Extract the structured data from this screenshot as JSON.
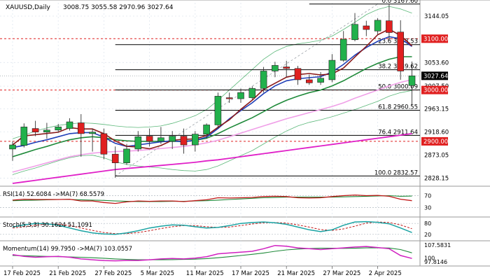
{
  "header": {
    "symbol": "XAUUSD,Daily",
    "ohlc": "3008.75 3055.58 2970.96 3027.64"
  },
  "chart_data": {
    "type": "candlestick",
    "title": "XAUUSD,Daily",
    "ylim": [
      2818,
      3170
    ],
    "price_ticks": [
      {
        "v": 3144.05,
        "t": "3144.05"
      },
      {
        "v": 3053.6,
        "t": "3053.60"
      },
      {
        "v": 3007.5,
        "t": "3007.50"
      },
      {
        "v": 2963.15,
        "t": "2963.15"
      },
      {
        "v": 2918.6,
        "t": "2918.60"
      },
      {
        "v": 2873.05,
        "t": "2873.05"
      },
      {
        "v": 2828.15,
        "t": "2828.15"
      }
    ],
    "highlight_labels": [
      {
        "v": 3100.0,
        "t": "3100.00",
        "color": "#e02020"
      },
      {
        "v": 3027.64,
        "t": "3027.64",
        "color": "#000000"
      },
      {
        "v": 3000.0,
        "t": "3000.00",
        "color": "#e02020"
      },
      {
        "v": 2900.0,
        "t": "2900.00",
        "color": "#e02020"
      }
    ],
    "fib_levels": [
      {
        "level": "0.0",
        "value": 3167.6,
        "label": "0.0 3167.60"
      },
      {
        "level": "23.6",
        "value": 3088.53,
        "label": "23.6 3088.53"
      },
      {
        "level": "38.2",
        "value": 3039.62,
        "label": "38.2 3039.62"
      },
      {
        "level": "50.0",
        "value": 3000.09,
        "label": "50.0 3000.09"
      },
      {
        "level": "61.8",
        "value": 2960.55,
        "label": "61.8 2960.55"
      },
      {
        "level": "76.4",
        "value": 2911.64,
        "label": "76.4 2911.64"
      },
      {
        "level": "100.0",
        "value": 2832.57,
        "label": "100.0 2832.57"
      }
    ],
    "candles": [
      {
        "o": 2885,
        "h": 2900,
        "l": 2862,
        "c": 2893
      },
      {
        "o": 2892,
        "h": 2935,
        "l": 2888,
        "c": 2928
      },
      {
        "o": 2925,
        "h": 2940,
        "l": 2910,
        "c": 2918
      },
      {
        "o": 2918,
        "h": 2936,
        "l": 2905,
        "c": 2922
      },
      {
        "o": 2922,
        "h": 2934,
        "l": 2917,
        "c": 2928
      },
      {
        "o": 2925,
        "h": 2945,
        "l": 2921,
        "c": 2938
      },
      {
        "o": 2936,
        "h": 2953,
        "l": 2870,
        "c": 2915
      },
      {
        "o": 2915,
        "h": 2925,
        "l": 2880,
        "c": 2918
      },
      {
        "o": 2915,
        "h": 2925,
        "l": 2865,
        "c": 2875
      },
      {
        "o": 2875,
        "h": 2890,
        "l": 2829,
        "c": 2858
      },
      {
        "o": 2858,
        "h": 2895,
        "l": 2854,
        "c": 2885
      },
      {
        "o": 2885,
        "h": 2920,
        "l": 2880,
        "c": 2909
      },
      {
        "o": 2910,
        "h": 2925,
        "l": 2890,
        "c": 2900
      },
      {
        "o": 2900,
        "h": 2928,
        "l": 2895,
        "c": 2907
      },
      {
        "o": 2900,
        "h": 2920,
        "l": 2885,
        "c": 2910
      },
      {
        "o": 2910,
        "h": 2925,
        "l": 2876,
        "c": 2893
      },
      {
        "o": 2893,
        "h": 2920,
        "l": 2880,
        "c": 2914
      },
      {
        "o": 2914,
        "h": 2935,
        "l": 2905,
        "c": 2932
      },
      {
        "o": 2932,
        "h": 2995,
        "l": 2925,
        "c": 2988
      },
      {
        "o": 2985,
        "h": 2995,
        "l": 2975,
        "c": 2983
      },
      {
        "o": 2983,
        "h": 3003,
        "l": 2975,
        "c": 2995
      },
      {
        "o": 2985,
        "h": 3007,
        "l": 2982,
        "c": 3003
      },
      {
        "o": 3003,
        "h": 3045,
        "l": 2995,
        "c": 3037
      },
      {
        "o": 3037,
        "h": 3055,
        "l": 3025,
        "c": 3048
      },
      {
        "o": 3045,
        "h": 3057,
        "l": 3025,
        "c": 3042
      },
      {
        "o": 3042,
        "h": 3047,
        "l": 3010,
        "c": 3020
      },
      {
        "o": 3020,
        "h": 3030,
        "l": 3010,
        "c": 3014
      },
      {
        "o": 3015,
        "h": 3035,
        "l": 3010,
        "c": 3023
      },
      {
        "o": 3020,
        "h": 3070,
        "l": 3015,
        "c": 3058
      },
      {
        "o": 3058,
        "h": 3115,
        "l": 3055,
        "c": 3099
      },
      {
        "o": 3098,
        "h": 3150,
        "l": 3095,
        "c": 3128
      },
      {
        "o": 3125,
        "h": 3135,
        "l": 3105,
        "c": 3118
      },
      {
        "o": 3115,
        "h": 3140,
        "l": 3108,
        "c": 3136
      },
      {
        "o": 3135,
        "h": 3168,
        "l": 3098,
        "c": 3112
      },
      {
        "o": 3113,
        "h": 3136,
        "l": 3020,
        "c": 3037
      },
      {
        "o": 3008.75,
        "h": 3055.58,
        "l": 2970.96,
        "c": 3027.64
      }
    ],
    "x_labels": [
      {
        "i": 0,
        "t": "17 Feb 2025"
      },
      {
        "i": 4,
        "t": "21 Feb 2025"
      },
      {
        "i": 8,
        "t": "27 Feb 2025"
      },
      {
        "i": 12,
        "t": "5 Mar 2025"
      },
      {
        "i": 16,
        "t": "11 Mar 2025"
      },
      {
        "i": 20,
        "t": "17 Mar 2025"
      },
      {
        "i": 24,
        "t": "21 Mar 2025"
      },
      {
        "i": 28,
        "t": "27 Mar 2025"
      },
      {
        "i": 32,
        "t": "2 Apr 2025"
      }
    ],
    "ma_fast": [
      2888,
      2892,
      2898,
      2903,
      2909,
      2915,
      2917,
      2917,
      2908,
      2896,
      2890,
      2893,
      2896,
      2899,
      2901,
      2899,
      2902,
      2908,
      2925,
      2944,
      2960,
      2975,
      2993,
      3008,
      3018,
      3022,
      3024,
      3026,
      3035,
      3050,
      3068,
      3083,
      3095,
      3104,
      3100,
      3085
    ],
    "ma_mid": [
      2870,
      2877,
      2884,
      2890,
      2897,
      2903,
      2907,
      2909,
      2907,
      2903,
      2901,
      2900,
      2900,
      2900,
      2900,
      2900,
      2902,
      2906,
      2915,
      2926,
      2936,
      2946,
      2958,
      2970,
      2980,
      2988,
      2995,
      3000,
      3008,
      3018,
      3030,
      3042,
      3052,
      3060,
      3065,
      3065
    ],
    "ma_slow": [
      2840,
      2846,
      2852,
      2858,
      2864,
      2870,
      2874,
      2877,
      2879,
      2880,
      2881,
      2882,
      2884,
      2886,
      2888,
      2890,
      2893,
      2897,
      2902,
      2909,
      2916,
      2923,
      2930,
      2937,
      2944,
      2950,
      2956,
      2962,
      2968,
      2975,
      2984,
      2992,
      3000,
      3008,
      3015,
      3020
    ],
    "ma_long": [
      2818,
      2821,
      2824,
      2827,
      2830,
      2833,
      2836,
      2839,
      2842,
      2845,
      2847,
      2849,
      2851,
      2853,
      2855,
      2857,
      2859,
      2862,
      2864,
      2867,
      2870,
      2873,
      2876,
      2879,
      2882,
      2885,
      2888,
      2891,
      2894,
      2897,
      2900,
      2903,
      2906,
      2909,
      2912,
      2915
    ],
    "env_upper": [
      2905,
      2912,
      2920,
      2926,
      2931,
      2934,
      2936,
      2935,
      2933,
      2930,
      2928,
      2927,
      2928,
      2930,
      2935,
      2942,
      2950,
      2962,
      2980,
      3000,
      3020,
      3040,
      3060,
      3075,
      3085,
      3090,
      3093,
      3097,
      3105,
      3118,
      3132,
      3147,
      3157,
      3163,
      3158,
      3150
    ],
    "env_lower": [
      2835,
      2842,
      2848,
      2855,
      2862,
      2868,
      2872,
      2873,
      2868,
      2860,
      2855,
      2852,
      2850,
      2848,
      2845,
      2843,
      2842,
      2845,
      2852,
      2862,
      2872,
      2882,
      2895,
      2908,
      2920,
      2930,
      2937,
      2942,
      2948,
      2955,
      2962,
      2970,
      2978,
      2988,
      2995,
      2999
    ],
    "rsi": {
      "title": "RSI(14) 52.6084 ->MA(7) 68.5579",
      "levels": [
        {
          "v": 70,
          "t": "70"
        },
        {
          "v": 30,
          "t": "30"
        }
      ],
      "rsi": [
        55,
        58,
        57,
        57,
        57,
        58,
        52,
        52,
        47,
        44,
        49,
        52,
        51,
        52,
        52,
        50,
        53,
        56,
        63,
        62,
        63,
        64,
        67,
        68,
        67,
        63,
        62,
        63,
        67,
        70,
        72,
        70,
        71,
        68,
        58,
        53
      ],
      "ma": [
        53,
        54,
        55,
        56,
        57,
        57,
        56,
        55,
        54,
        52,
        51,
        50,
        50,
        50,
        51,
        51,
        52,
        53,
        55,
        57,
        59,
        61,
        63,
        64,
        65,
        65,
        65,
        65,
        65,
        66,
        67,
        68,
        69,
        70,
        68,
        68.6
      ]
    },
    "stoch": {
      "title": "Stoch(5,3,3) 30.1624 51.1091",
      "levels": [
        {
          "v": 80,
          "t": "80"
        },
        {
          "v": 20,
          "t": "20"
        }
      ],
      "k": [
        60,
        72,
        80,
        78,
        70,
        55,
        40,
        28,
        22,
        20,
        28,
        40,
        55,
        65,
        72,
        70,
        62,
        55,
        58,
        68,
        80,
        85,
        88,
        84,
        75,
        60,
        45,
        35,
        45,
        70,
        88,
        90,
        86,
        78,
        55,
        30
      ],
      "d": [
        55,
        62,
        70,
        76,
        76,
        68,
        55,
        42,
        30,
        24,
        24,
        30,
        40,
        52,
        62,
        68,
        68,
        62,
        58,
        60,
        68,
        77,
        84,
        85,
        82,
        72,
        60,
        46,
        42,
        50,
        65,
        82,
        88,
        85,
        72,
        51
      ]
    },
    "momentum": {
      "title": "Momentum(14) 99.7950 ->MA(7) 103.0557",
      "labels": [
        {
          "v": 107.5831,
          "t": "107.5831"
        },
        {
          "v": 100,
          "t": "100"
        },
        {
          "v": 97.8146,
          "t": "97.8146"
        }
      ],
      "mom": [
        102,
        101,
        100.5,
        100.8,
        101,
        100.5,
        99.5,
        99,
        98.5,
        98.4,
        98.6,
        98.6,
        99,
        99.5,
        99.8,
        99.5,
        100,
        100.8,
        102.5,
        103,
        103.5,
        104,
        105.5,
        107.4,
        107,
        106,
        105.5,
        105,
        105.5,
        106,
        106.5,
        106.8,
        106.2,
        105.5,
        101.5,
        99.8
      ],
      "ma": [
        101.5,
        101.4,
        101.2,
        101,
        100.8,
        100.7,
        100.5,
        100.2,
        99.9,
        99.5,
        99.2,
        99,
        99,
        99,
        99.1,
        99.2,
        99.4,
        99.7,
        100.2,
        100.8,
        101.5,
        102.2,
        103,
        104,
        104.8,
        105.3,
        105.6,
        105.8,
        105.8,
        105.7,
        105.8,
        106,
        106,
        105.9,
        105,
        103.06
      ]
    }
  }
}
